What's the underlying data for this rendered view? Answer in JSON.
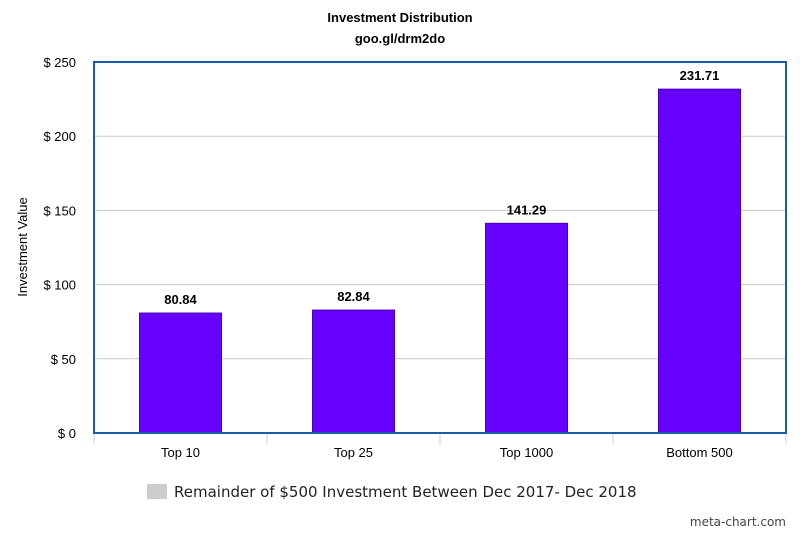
{
  "chart_data": {
    "type": "bar",
    "title": "Investment Distribution",
    "subtitle": "goo.gl/drm2do",
    "ylabel": "Investment Value",
    "xlabel": "",
    "categories": [
      "Top 10",
      "Top 25",
      "Top 1000",
      "Bottom 500"
    ],
    "values": [
      80.84,
      82.84,
      141.29,
      231.71
    ],
    "data_labels": [
      "80.84",
      "82.84",
      "141.29",
      "231.71"
    ],
    "ylim": [
      0,
      250
    ],
    "yticks": [
      0,
      50,
      100,
      150,
      200,
      250
    ],
    "ytick_labels": [
      "$ 0",
      "$ 50",
      "$ 100",
      "$ 150",
      "$ 200",
      "$ 250"
    ],
    "grid": true,
    "bar_color": "#6600ff",
    "legend": {
      "placement": "bottom",
      "label": "Remainder of $500 Investment Between Dec 2017- Dec 2018",
      "swatch_color": "#cccccc"
    },
    "border_color": "#1a5aa8"
  },
  "footer": {
    "credit": "meta-chart.com"
  }
}
